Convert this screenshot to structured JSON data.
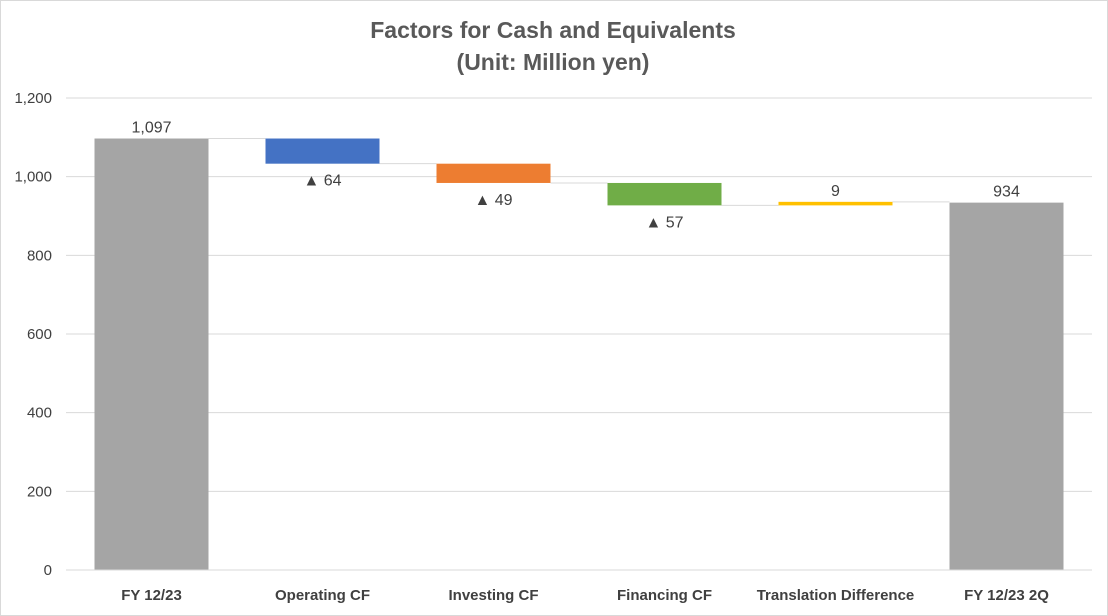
{
  "chart_data": {
    "type": "bar",
    "subtype": "waterfall",
    "title": "Factors for Cash and Equivalents",
    "subtitle": "(Unit: Million yen)",
    "categories": [
      "FY 12/23",
      "Operating CF",
      "Investing CF",
      "Financing CF",
      "Translation Difference",
      "FY 12/23 2Q"
    ],
    "steps": [
      {
        "kind": "total",
        "value": 1097,
        "color": "#a5a5a5",
        "label": "1,097"
      },
      {
        "kind": "change",
        "value": -64,
        "color": "#4472c4",
        "label": "▲ 64"
      },
      {
        "kind": "change",
        "value": -49,
        "color": "#ed7d31",
        "label": "▲ 49"
      },
      {
        "kind": "change",
        "value": -57,
        "color": "#70ad47",
        "label": "▲ 57"
      },
      {
        "kind": "change",
        "value": 9,
        "color": "#ffc000",
        "label": "9"
      },
      {
        "kind": "total",
        "value": 934,
        "color": "#a5a5a5",
        "label": "934"
      }
    ],
    "ylim": [
      0,
      1200
    ],
    "yticks": [
      0,
      200,
      400,
      600,
      800,
      1000,
      1200
    ],
    "ytick_labels": [
      "0",
      "200",
      "400",
      "600",
      "800",
      "1,000",
      "1,200"
    ],
    "grid": true,
    "xlabel": "",
    "ylabel": ""
  }
}
